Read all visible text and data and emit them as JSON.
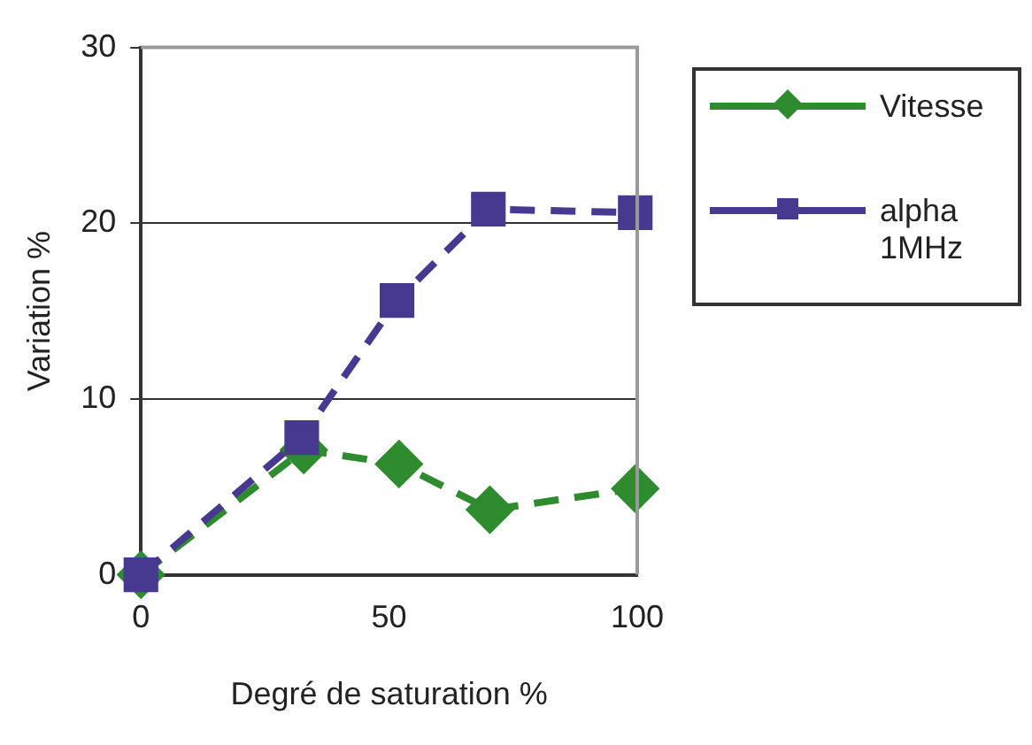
{
  "chart_data": {
    "type": "line",
    "xlabel": "Degré de saturation %",
    "ylabel": "Variation %",
    "xlim": [
      0,
      100
    ],
    "xticks": [
      0,
      50,
      100
    ],
    "ylim": [
      0,
      30
    ],
    "yticks": [
      0,
      10,
      20,
      30
    ],
    "grid": "y",
    "legend": "right",
    "line_style": "dashed",
    "series": [
      {
        "name": "Vitesse",
        "color": "#2e8b2e",
        "marker": "diamond",
        "x": [
          0,
          32.8,
          52,
          70.3,
          99.6
        ],
        "values": [
          0,
          7.1,
          6.3,
          3.7,
          4.9
        ]
      },
      {
        "name": "alpha 1MHz",
        "color": "#46398f",
        "marker": "square",
        "x": [
          0,
          32.4,
          51.6,
          70,
          99.6
        ],
        "values": [
          0,
          7.8,
          15.6,
          20.8,
          20.6
        ]
      }
    ]
  }
}
